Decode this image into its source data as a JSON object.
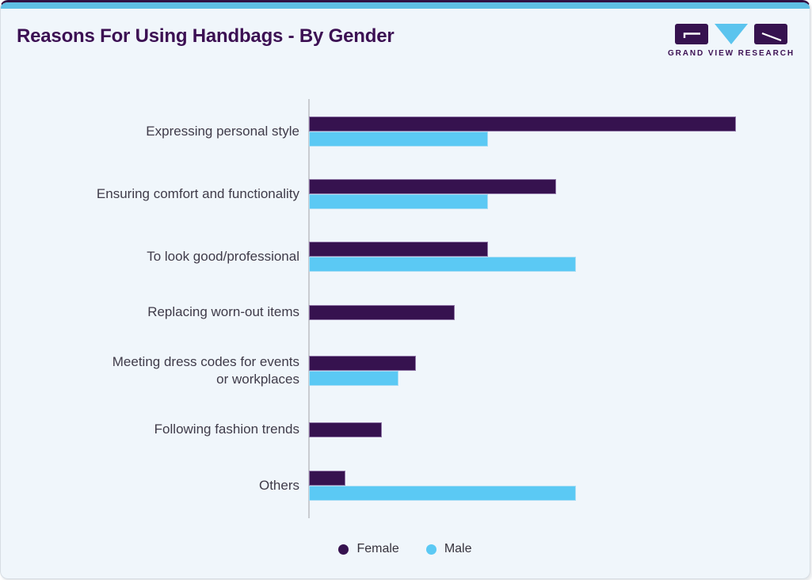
{
  "card": {
    "title": "Reasons For Using Handbags - By Gender",
    "logo": {
      "text": "GRAND VIEW RESEARCH",
      "mark": "gvr-monogram"
    }
  },
  "colors": {
    "background": "#F0F6FB",
    "card_border": "#D7DDE3",
    "top_strip": "#5FBFE4",
    "title": "#3C1053",
    "female_bar": "#36124F",
    "male_bar": "#5BC9F4",
    "axis_line": "#C9CCD1",
    "label_text": "#3F3B49",
    "legend_text": "#35323C"
  },
  "chart_data": {
    "type": "bar",
    "orientation": "horizontal",
    "title": "Reasons For Using Handbags - By Gender",
    "value_axis": "hidden",
    "units": "estimated percent of plot width (chart shows no numeric axis or data labels)",
    "xlim": [
      0,
      100
    ],
    "grid": false,
    "legend_position": "bottom",
    "categories": [
      "Expressing personal style",
      "Ensuring comfort and functionality",
      "To look good/professional",
      "Replacing worn-out items",
      "Meeting dress codes for events\nor workplaces",
      "Following fashion trends",
      "Others"
    ],
    "series": [
      {
        "name": "Female",
        "color": "#36124F",
        "edge_color": "#8F76A6",
        "values": [
          88,
          51,
          37,
          30,
          22,
          15,
          7.5
        ]
      },
      {
        "name": "Male",
        "color": "#5BC9F4",
        "edge_color": "#A8DDF4",
        "values": [
          37,
          37,
          55,
          null,
          18.5,
          null,
          55
        ]
      }
    ]
  }
}
